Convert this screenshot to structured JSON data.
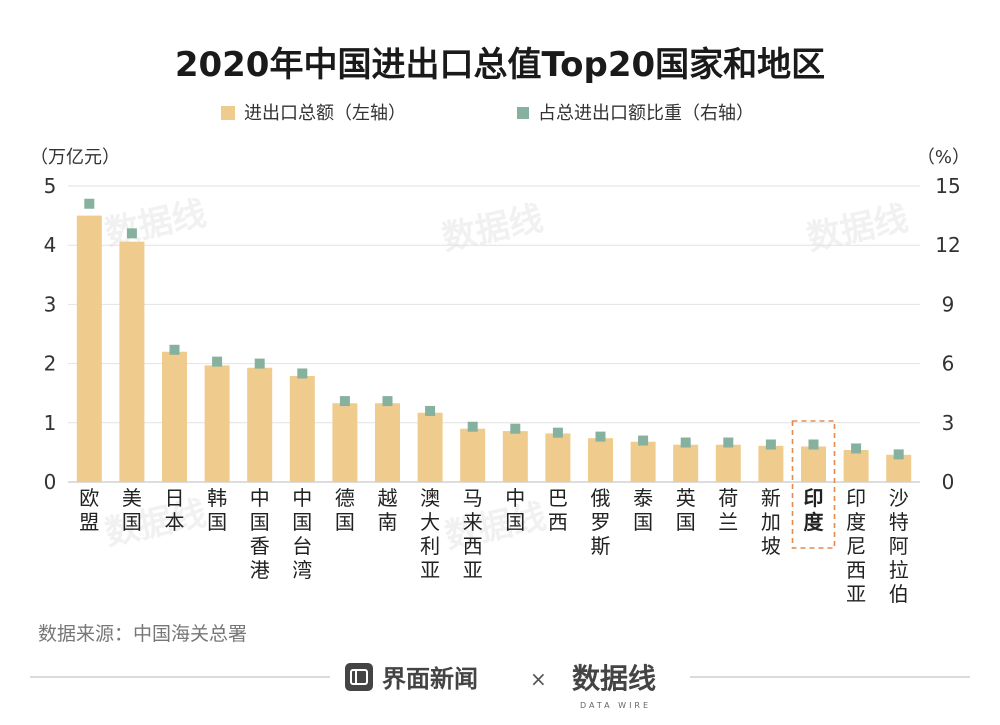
{
  "chart_data": {
    "type": "bar",
    "title": "2020年中国进出口总值Top20国家和地区",
    "y_left_unit": "（万亿元）",
    "y_right_unit": "（%）",
    "ylim_left": [
      0,
      5
    ],
    "ylim_right": [
      0,
      15
    ],
    "y_left_ticks": [
      "0",
      "1",
      "2",
      "3",
      "4",
      "5"
    ],
    "y_right_ticks": [
      "0",
      "3",
      "6",
      "9",
      "12",
      "15"
    ],
    "legend_position": "top-center",
    "categories": [
      "欧盟",
      "美国",
      "日本",
      "韩国",
      "中国香港",
      "中国台湾",
      "德国",
      "越南",
      "澳大利亚",
      "马来西亚",
      "中国",
      "巴西",
      "俄罗斯",
      "泰国",
      "英国",
      "荷兰",
      "新加坡",
      "印度",
      "印度尼西亚",
      "沙特阿拉伯"
    ],
    "highlight_category": "印度",
    "series": [
      {
        "name": "进出口总额（左轴）",
        "type": "bar",
        "axis": "left",
        "color": "#F0CB8E",
        "values": [
          4.5,
          4.06,
          2.2,
          1.97,
          1.93,
          1.79,
          1.33,
          1.33,
          1.17,
          0.9,
          0.86,
          0.82,
          0.74,
          0.68,
          0.63,
          0.63,
          0.61,
          0.6,
          0.54,
          0.46
        ]
      },
      {
        "name": "占总进出口额比重（右轴）",
        "type": "point",
        "axis": "right",
        "color": "#86B19F",
        "values": [
          14.1,
          12.6,
          6.7,
          6.1,
          6.0,
          5.5,
          4.1,
          4.1,
          3.6,
          2.8,
          2.7,
          2.5,
          2.3,
          2.1,
          2.0,
          2.0,
          1.9,
          1.9,
          1.7,
          1.4
        ]
      }
    ]
  },
  "source": "数据来源：中国海关总署",
  "footer": {
    "brand": "界面新闻",
    "separator": "×",
    "partner": "数据线",
    "partner_sub": "DATA WIRE"
  },
  "colors": {
    "bar": "#F0CB8E",
    "point": "#86B19F",
    "highlight_box": "#E58A4E",
    "text": "#222222",
    "muted": "#777777"
  }
}
